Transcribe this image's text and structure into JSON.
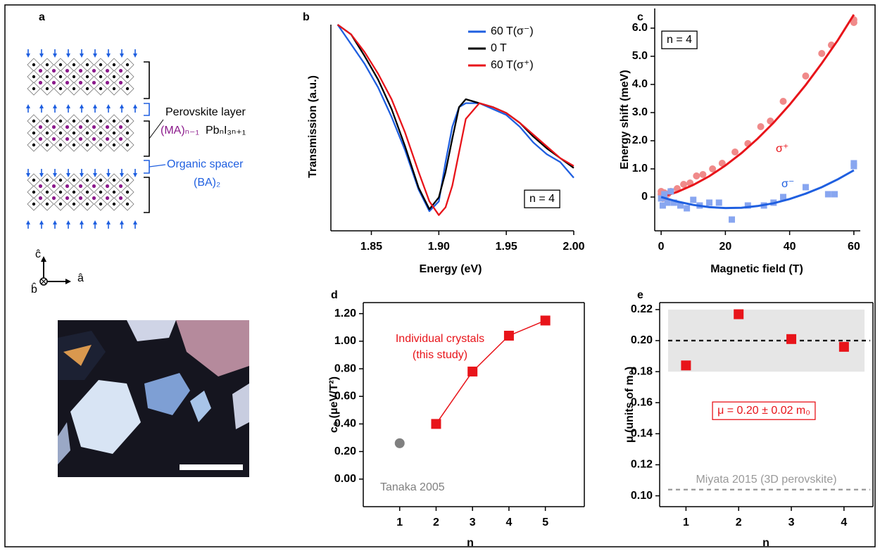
{
  "panel_a": {
    "label": "a",
    "layer_label": "Perovskite layer",
    "formula": [
      "(MA)ₙ₋₁",
      "PbₙI₃ₙ₊₁"
    ],
    "spacer_label": "Organic spacer",
    "spacer_formula": "(BA)₂",
    "axes": [
      "ĉ",
      "â",
      "b̂"
    ]
  },
  "chart_data": [
    {
      "panel": "b",
      "type": "line",
      "xlabel": "Energy (eV)",
      "ylabel": "Transmission (a.u.)",
      "x": [
        1.825,
        1.835,
        1.845,
        1.855,
        1.865,
        1.875,
        1.885,
        1.893,
        1.9,
        1.905,
        1.91,
        1.915,
        1.92,
        1.93,
        1.94,
        1.95,
        1.96,
        1.97,
        1.98,
        1.99,
        2.0
      ],
      "series": [
        {
          "name": "60 T(σ⁻)",
          "color": "#1f5fe0",
          "values": [
            1.0,
            0.9,
            0.8,
            0.68,
            0.53,
            0.36,
            0.16,
            0.05,
            0.1,
            0.3,
            0.48,
            0.58,
            0.6,
            0.6,
            0.57,
            0.54,
            0.48,
            0.4,
            0.34,
            0.3,
            0.22
          ]
        },
        {
          "name": "0 T",
          "color": "#000000",
          "values": [
            1.0,
            0.95,
            0.84,
            0.72,
            0.57,
            0.38,
            0.17,
            0.06,
            0.12,
            0.25,
            0.42,
            0.58,
            0.62,
            0.6,
            0.58,
            0.55,
            0.5,
            0.43,
            0.37,
            0.32,
            0.27
          ]
        },
        {
          "name": "60 T(σ⁺)",
          "color": "#e8141a",
          "values": [
            1.0,
            0.95,
            0.86,
            0.75,
            0.62,
            0.45,
            0.25,
            0.1,
            0.03,
            0.07,
            0.18,
            0.35,
            0.52,
            0.6,
            0.58,
            0.55,
            0.5,
            0.44,
            0.38,
            0.32,
            0.28
          ]
        }
      ],
      "xlim": [
        1.82,
        2.0
      ],
      "xticks": [
        1.85,
        {
          "value": 1.9,
          "label": "1.90"
        },
        1.95,
        {
          "value": 2,
          "label": "2.00"
        }
      ],
      "ylim": [
        -0.05,
        1.0
      ],
      "annotation": "n = 4",
      "legend": "upper right"
    },
    {
      "panel": "c",
      "type": "scatter",
      "xlabel": "Magnetic field (T)",
      "ylabel": "Energy shift (meV)",
      "series": [
        {
          "name": "σ⁺",
          "color": "#f08a8a",
          "marker": "circle",
          "x": [
            0,
            0,
            0.5,
            1,
            2,
            3,
            5,
            7,
            9,
            11,
            13,
            16,
            19,
            23,
            27,
            31,
            34,
            38,
            45,
            50,
            53,
            60,
            60
          ],
          "values": [
            0.2,
            0.1,
            -0.05,
            0.15,
            0.1,
            0.2,
            0.3,
            0.45,
            0.5,
            0.75,
            0.8,
            1.0,
            1.2,
            1.6,
            1.9,
            2.5,
            2.7,
            3.4,
            4.3,
            5.1,
            5.4,
            6.2,
            6.3
          ],
          "fit": {
            "color": "#e8141a",
            "x": [
              0,
              5,
              10,
              15,
              20,
              25,
              30,
              35,
              40,
              45,
              50,
              55,
              60
            ],
            "values": [
              0,
              0.18,
              0.43,
              0.74,
              1.12,
              1.56,
              2.07,
              2.64,
              3.28,
              3.98,
              4.75,
              5.57,
              6.48
            ]
          }
        },
        {
          "name": "σ⁻",
          "color": "#88a6f0",
          "marker": "square",
          "x": [
            0,
            0.5,
            1,
            2,
            3,
            4,
            6,
            8,
            10,
            12,
            15,
            18,
            22,
            27,
            32,
            35,
            38,
            45,
            52,
            54,
            60,
            60
          ],
          "values": [
            -0.05,
            -0.3,
            0.1,
            -0.2,
            0.2,
            -0.2,
            -0.3,
            -0.4,
            -0.1,
            -0.3,
            -0.2,
            -0.2,
            -0.8,
            -0.3,
            -0.3,
            -0.2,
            0,
            0.35,
            0.1,
            0.1,
            1.1,
            1.2
          ],
          "fit": {
            "color": "#1f5fe0",
            "x": [
              0,
              5,
              10,
              15,
              20,
              25,
              30,
              35,
              40,
              45,
              50,
              55,
              60
            ],
            "values": [
              0,
              -0.16,
              -0.28,
              -0.36,
              -0.39,
              -0.38,
              -0.32,
              -0.22,
              -0.07,
              0.12,
              0.35,
              0.63,
              0.95
            ]
          }
        }
      ],
      "xlim": [
        -2,
        62
      ],
      "xticks": [
        0,
        20,
        40,
        60
      ],
      "ylim": [
        -1.2,
        6.7
      ],
      "yticks": [
        0,
        {
          "value": 1,
          "label": "1.0"
        },
        {
          "value": 2,
          "label": "2.0"
        },
        {
          "value": 3,
          "label": "3.0"
        },
        {
          "value": 4,
          "label": "4.0"
        },
        {
          "value": 5,
          "label": "5.0"
        },
        {
          "value": 6,
          "label": "6.0"
        }
      ],
      "annotation": "n = 4"
    },
    {
      "panel": "d",
      "type": "line",
      "xlabel": "n",
      "ylabel": "c₀ (μeV/T²)",
      "box": true,
      "series": [
        {
          "name": [
            "Individual crystals",
            "(this study)"
          ],
          "color": "#e8141a",
          "marker": "square",
          "x": [
            2,
            3,
            4,
            5
          ],
          "values": [
            0.4,
            0.78,
            1.04,
            1.15
          ]
        },
        {
          "name": [
            "Tanaka 2005"
          ],
          "color": "#808080",
          "marker": "circle",
          "x": [
            1
          ],
          "values": [
            0.26
          ]
        }
      ],
      "xlim": [
        0,
        6.07
      ],
      "xticks": [
        1,
        2,
        3,
        4,
        5
      ],
      "ylim": [
        -0.2,
        1.28
      ],
      "yticks": [
        {
          "value": 0,
          "label": "0.00"
        },
        {
          "value": 0.2,
          "label": "0.20"
        },
        {
          "value": 0.4,
          "label": "0.40"
        },
        {
          "value": 0.6,
          "label": "0.60"
        },
        {
          "value": 0.8,
          "label": "0.80"
        },
        {
          "value": 1,
          "label": "1.00"
        },
        {
          "value": 1.2,
          "label": "1.20"
        }
      ]
    },
    {
      "panel": "e",
      "type": "scatter",
      "xlabel": "n",
      "ylabel": "μ (units of m₀)",
      "box": true,
      "series": [
        {
          "color": "#e8141a",
          "marker": "square",
          "x": [
            1,
            2,
            3,
            4
          ],
          "values": [
            0.184,
            0.217,
            0.201,
            0.196
          ]
        }
      ],
      "xlim": [
        0.5,
        4.55
      ],
      "xticks": [
        1,
        2,
        3,
        4
      ],
      "ylim": [
        0.093,
        0.2245
      ],
      "yticks": [
        {
          "value": 0.1,
          "label": "0.10"
        },
        0.12,
        0.14,
        0.16,
        0.18,
        {
          "value": 0.2,
          "label": "0.20"
        },
        0.22
      ],
      "band": {
        "range": [
          0.18,
          0.22
        ],
        "color": "#e6e6e6"
      },
      "reference_lines": [
        {
          "value": 0.2,
          "color": "#000000"
        },
        {
          "value": 0.104,
          "color": "#999999",
          "label": "Miyata 2015 (3D perovskite)"
        }
      ],
      "annotation": "μ = 0.20 ± 0.02 m₀"
    }
  ]
}
